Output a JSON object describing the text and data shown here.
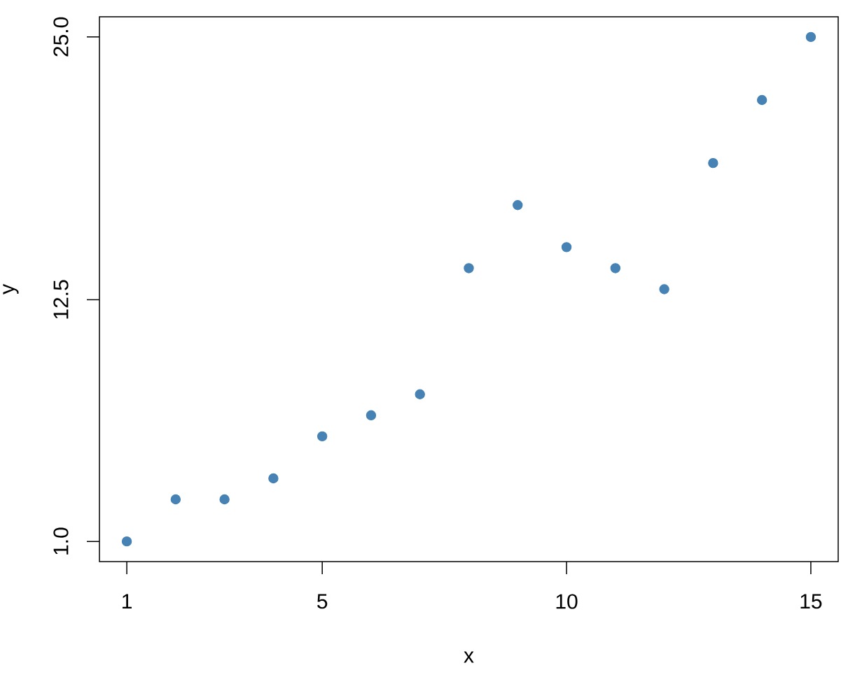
{
  "chart_data": {
    "type": "scatter",
    "xlabel": "x",
    "ylabel": "y",
    "x": [
      1,
      2,
      3,
      4,
      5,
      6,
      7,
      8,
      9,
      10,
      11,
      12,
      13,
      14,
      15
    ],
    "values": [
      1,
      3,
      3,
      4,
      6,
      7,
      8,
      14,
      17,
      15,
      14,
      13,
      19,
      22,
      25
    ],
    "color": "#4682b4",
    "marker": "circle",
    "xlim": [
      0.44,
      15.56
    ],
    "ylim": [
      0.04,
      25.96
    ],
    "xticks": [
      1,
      5,
      10,
      15
    ],
    "yticks": [
      {
        "value": 1,
        "label": "1.0"
      },
      12.5,
      {
        "value": 25,
        "label": "25.0"
      }
    ]
  }
}
